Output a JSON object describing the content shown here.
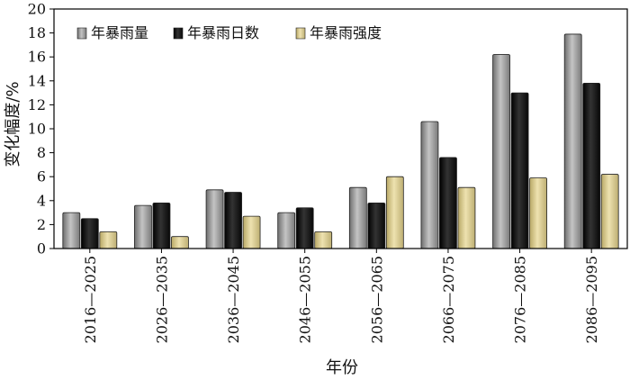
{
  "chart_data": {
    "type": "bar",
    "title": "",
    "xlabel": "年份",
    "ylabel": "变化幅度/%",
    "ylim": [
      0,
      20
    ],
    "yticks": [
      0,
      2,
      4,
      6,
      8,
      10,
      12,
      14,
      16,
      18,
      20
    ],
    "grid": false,
    "legend_position": "top-left",
    "categories": [
      "2016—2025",
      "2026—2035",
      "2036—2045",
      "2046—2055",
      "2056—2065",
      "2066—2075",
      "2076—2085",
      "2086—2095"
    ],
    "series": [
      {
        "name": "年暴雨量",
        "color": "#9a9a9a",
        "values": [
          3.0,
          3.6,
          4.9,
          3.0,
          5.1,
          10.6,
          16.2,
          17.9
        ]
      },
      {
        "name": "年暴雨日数",
        "color": "#1a1a1a",
        "values": [
          2.5,
          3.8,
          4.7,
          3.4,
          3.8,
          7.6,
          13.0,
          13.8
        ]
      },
      {
        "name": "年暴雨强度",
        "color": "#d9c98c",
        "values": [
          1.4,
          1.0,
          2.7,
          1.4,
          6.0,
          5.1,
          5.9,
          6.2
        ]
      }
    ]
  }
}
